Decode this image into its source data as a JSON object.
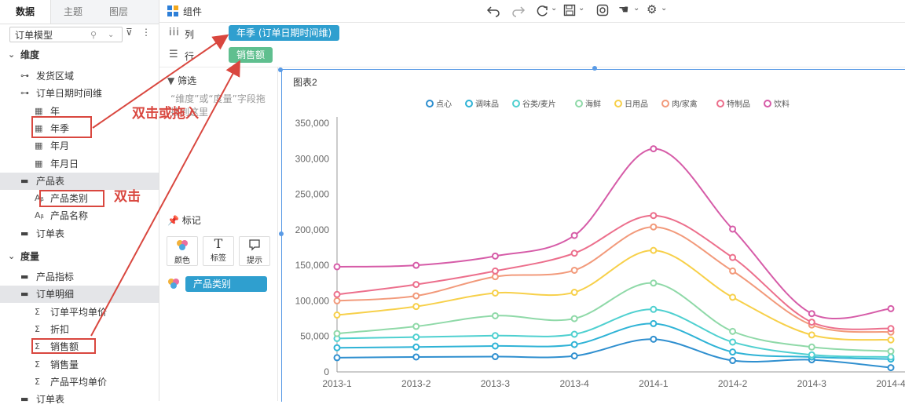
{
  "left_panel": {
    "tabs": [
      "数据",
      "主题",
      "图层"
    ],
    "model_select": "订单模型",
    "dimension_header": "维度",
    "measure_header": "度量",
    "dimensions": [
      {
        "label": "发货区域",
        "icon": "hierarchy-icon",
        "indent": 1
      },
      {
        "label": "订单日期时间维",
        "icon": "hierarchy-icon",
        "indent": 1
      },
      {
        "label": "年",
        "icon": "date-icon",
        "indent": 2
      },
      {
        "label": "年季",
        "icon": "date-icon",
        "indent": 2
      },
      {
        "label": "年月",
        "icon": "date-icon",
        "indent": 2
      },
      {
        "label": "年月日",
        "icon": "date-icon",
        "indent": 2
      },
      {
        "label": "产品表",
        "icon": "folder-icon",
        "indent": 1
      },
      {
        "label": "产品类别",
        "icon": "text-icon",
        "indent": 2
      },
      {
        "label": "产品名称",
        "icon": "text-icon",
        "indent": 2
      },
      {
        "label": "订单表",
        "icon": "folder-icon",
        "indent": 1
      }
    ],
    "measures": [
      {
        "label": "产品指标",
        "icon": "folder-icon",
        "indent": 1
      },
      {
        "label": "订单明细",
        "icon": "folder-icon",
        "indent": 1
      },
      {
        "label": "订单平均单价",
        "icon": "sigma-icon",
        "indent": 2
      },
      {
        "label": "折扣",
        "icon": "sigma-icon",
        "indent": 2
      },
      {
        "label": "销售额",
        "icon": "sigma-icon",
        "indent": 2
      },
      {
        "label": "销售量",
        "icon": "sigma-icon",
        "indent": 2
      },
      {
        "label": "产品平均单价",
        "icon": "sigma-icon",
        "indent": 2
      },
      {
        "label": "订单表",
        "icon": "folder-icon",
        "indent": 1
      }
    ]
  },
  "toolbar": {
    "component_label": "组件"
  },
  "shelves": {
    "column_label": "列",
    "row_label": "行",
    "column_pill": "年季 (订单日期时间维)",
    "row_pill": "销售额",
    "column_pill_color": "#2f9fcf",
    "row_pill_color": "#5fbf8f"
  },
  "middle_panel": {
    "filter_label": "筛选",
    "filter_hint": "“维度”或“度量”字段拖拽到这里",
    "mark_label": "标记",
    "mark_buttons": [
      "颜色",
      "标签",
      "提示"
    ],
    "color_pill": "产品类别"
  },
  "annotations": {
    "double_click_or_insert": "双击或拖入",
    "double_click": "双击"
  },
  "chart_data": {
    "type": "line",
    "title": "图表2",
    "categories": [
      "2013-1",
      "2013-2",
      "2013-3",
      "2013-4",
      "2014-1",
      "2014-2",
      "2014-3",
      "2014-4"
    ],
    "ylim": [
      0,
      350000
    ],
    "yticks": [
      0,
      50000,
      100000,
      150000,
      200000,
      250000,
      300000,
      350000
    ],
    "ytick_labels": [
      "0",
      "50,000",
      "100,000",
      "150,000",
      "200,000",
      "250,000",
      "300,000",
      "350,000"
    ],
    "legend_position": "top",
    "grid": false,
    "series": [
      {
        "name": "点心",
        "color": "#2f8fcf",
        "values": [
          20000,
          21000,
          21500,
          22500,
          46000,
          16000,
          17000,
          6000
        ]
      },
      {
        "name": "调味品",
        "color": "#2fb3d6",
        "values": [
          34000,
          35000,
          36500,
          38500,
          68000,
          28000,
          21000,
          18000
        ]
      },
      {
        "name": "谷类/麦片",
        "color": "#4fd0d0",
        "values": [
          47000,
          49000,
          51000,
          53000,
          88000,
          42000,
          24000,
          21000
        ]
      },
      {
        "name": "海鲜",
        "color": "#8fd9a8",
        "values": [
          54000,
          64000,
          79000,
          75000,
          125000,
          57000,
          35000,
          29000
        ]
      },
      {
        "name": "日用品",
        "color": "#f7d04a",
        "values": [
          80000,
          92000,
          111000,
          112000,
          171000,
          105000,
          52000,
          45000
        ]
      },
      {
        "name": "肉/家禽",
        "color": "#f29a7b",
        "values": [
          100000,
          107000,
          134000,
          143000,
          204000,
          142000,
          66000,
          56000
        ]
      },
      {
        "name": "特制品",
        "color": "#ec6f8c",
        "values": [
          109000,
          123000,
          142000,
          167000,
          220000,
          161000,
          70000,
          61000
        ]
      },
      {
        "name": "饮料",
        "color": "#d65ca8",
        "values": [
          148000,
          150000,
          163000,
          192000,
          314000,
          201000,
          82000,
          89000
        ]
      }
    ]
  }
}
